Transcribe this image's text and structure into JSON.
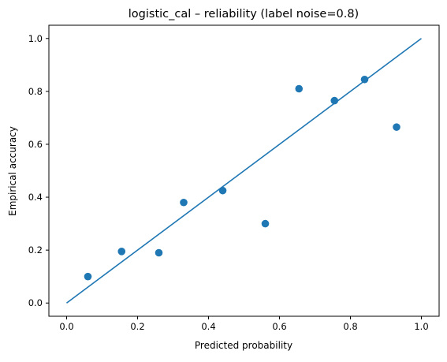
{
  "chart_data": {
    "type": "scatter",
    "title": "logistic_cal – reliability (label noise=0.8)",
    "xlabel": "Predicted probability",
    "ylabel": "Empirical accuracy",
    "xlim": [
      -0.05,
      1.05
    ],
    "ylim": [
      -0.05,
      1.05
    ],
    "xticks": [
      "0.0",
      "0.2",
      "0.4",
      "0.6",
      "0.8",
      "1.0"
    ],
    "yticks": [
      "0.0",
      "0.2",
      "0.4",
      "0.6",
      "0.8",
      "1.0"
    ],
    "grid": false,
    "legend": "none",
    "reference_line": {
      "x": [
        0,
        1
      ],
      "y": [
        0,
        1
      ]
    },
    "points": {
      "x": [
        0.06,
        0.155,
        0.26,
        0.33,
        0.44,
        0.56,
        0.655,
        0.755,
        0.84,
        0.93
      ],
      "y": [
        0.1,
        0.195,
        0.19,
        0.38,
        0.425,
        0.3,
        0.81,
        0.765,
        0.845,
        0.665
      ]
    },
    "colors": {
      "series": "#1f77b4",
      "axis": "#000000"
    }
  }
}
